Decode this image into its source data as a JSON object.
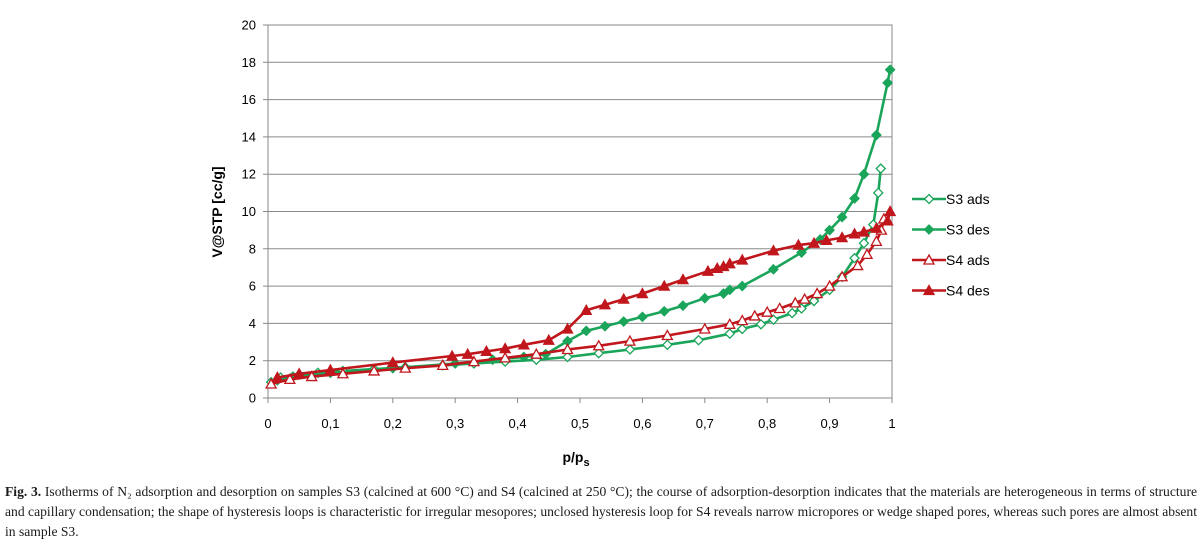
{
  "chart_data": {
    "type": "line",
    "xlabel_main": "p/p",
    "xlabel_sub": "s",
    "ylabel": "V@STP [cc/g]",
    "xlim": [
      0,
      1
    ],
    "ylim": [
      0,
      20
    ],
    "x_ticks": [
      "0",
      "0,1",
      "0,2",
      "0,3",
      "0,4",
      "0,5",
      "0,6",
      "0,7",
      "0,8",
      "0,9",
      "1"
    ],
    "y_ticks": [
      "0",
      "2",
      "4",
      "6",
      "8",
      "10",
      "12",
      "14",
      "16",
      "18",
      "20"
    ],
    "grid": "horizontal",
    "legend_position": "right",
    "series": [
      {
        "name": "S3 ads",
        "color": "#1aa55a",
        "marker": "diamond-open",
        "points": [
          [
            0.005,
            0.85
          ],
          [
            0.02,
            1.1
          ],
          [
            0.05,
            1.25
          ],
          [
            0.08,
            1.35
          ],
          [
            0.12,
            1.45
          ],
          [
            0.17,
            1.55
          ],
          [
            0.22,
            1.65
          ],
          [
            0.28,
            1.75
          ],
          [
            0.33,
            1.85
          ],
          [
            0.38,
            1.95
          ],
          [
            0.43,
            2.05
          ],
          [
            0.48,
            2.2
          ],
          [
            0.53,
            2.4
          ],
          [
            0.58,
            2.6
          ],
          [
            0.64,
            2.85
          ],
          [
            0.69,
            3.1
          ],
          [
            0.74,
            3.45
          ],
          [
            0.76,
            3.7
          ],
          [
            0.79,
            3.95
          ],
          [
            0.81,
            4.2
          ],
          [
            0.84,
            4.55
          ],
          [
            0.855,
            4.8
          ],
          [
            0.875,
            5.2
          ],
          [
            0.9,
            5.8
          ],
          [
            0.92,
            6.5
          ],
          [
            0.94,
            7.5
          ],
          [
            0.955,
            8.3
          ],
          [
            0.97,
            9.3
          ],
          [
            0.978,
            11.0
          ],
          [
            0.982,
            12.3
          ]
        ]
      },
      {
        "name": "S3 des",
        "color": "#1aa55a",
        "marker": "diamond-filled",
        "points": [
          [
            0.997,
            17.6
          ],
          [
            0.993,
            16.9
          ],
          [
            0.975,
            14.1
          ],
          [
            0.955,
            12.0
          ],
          [
            0.94,
            10.7
          ],
          [
            0.92,
            9.7
          ],
          [
            0.9,
            9.0
          ],
          [
            0.885,
            8.5
          ],
          [
            0.855,
            7.8
          ],
          [
            0.81,
            6.9
          ],
          [
            0.76,
            6.0
          ],
          [
            0.74,
            5.8
          ],
          [
            0.73,
            5.6
          ],
          [
            0.7,
            5.35
          ],
          [
            0.665,
            4.95
          ],
          [
            0.635,
            4.65
          ],
          [
            0.6,
            4.35
          ],
          [
            0.57,
            4.1
          ],
          [
            0.54,
            3.85
          ],
          [
            0.51,
            3.6
          ],
          [
            0.48,
            3.05
          ],
          [
            0.445,
            2.35
          ],
          [
            0.41,
            2.2
          ],
          [
            0.36,
            2.05
          ],
          [
            0.3,
            1.85
          ],
          [
            0.2,
            1.6
          ],
          [
            0.1,
            1.35
          ],
          [
            0.04,
            1.15
          ],
          [
            0.015,
            0.95
          ]
        ]
      },
      {
        "name": "S4 ads",
        "color": "#c0161c",
        "marker": "triangle-open",
        "points": [
          [
            0.005,
            0.75
          ],
          [
            0.035,
            1.0
          ],
          [
            0.07,
            1.15
          ],
          [
            0.12,
            1.3
          ],
          [
            0.17,
            1.45
          ],
          [
            0.22,
            1.6
          ],
          [
            0.28,
            1.75
          ],
          [
            0.33,
            1.95
          ],
          [
            0.38,
            2.15
          ],
          [
            0.43,
            2.35
          ],
          [
            0.48,
            2.6
          ],
          [
            0.53,
            2.8
          ],
          [
            0.58,
            3.05
          ],
          [
            0.64,
            3.35
          ],
          [
            0.7,
            3.7
          ],
          [
            0.74,
            3.95
          ],
          [
            0.76,
            4.15
          ],
          [
            0.78,
            4.4
          ],
          [
            0.8,
            4.6
          ],
          [
            0.82,
            4.8
          ],
          [
            0.845,
            5.1
          ],
          [
            0.86,
            5.3
          ],
          [
            0.88,
            5.6
          ],
          [
            0.9,
            6.0
          ],
          [
            0.92,
            6.5
          ],
          [
            0.945,
            7.1
          ],
          [
            0.96,
            7.7
          ],
          [
            0.975,
            8.4
          ],
          [
            0.983,
            9.0
          ],
          [
            0.987,
            9.6
          ]
        ]
      },
      {
        "name": "S4 des",
        "color": "#c0161c",
        "marker": "triangle-filled",
        "points": [
          [
            0.997,
            10.0
          ],
          [
            0.993,
            9.5
          ],
          [
            0.975,
            9.1
          ],
          [
            0.955,
            8.9
          ],
          [
            0.94,
            8.8
          ],
          [
            0.92,
            8.6
          ],
          [
            0.895,
            8.45
          ],
          [
            0.875,
            8.3
          ],
          [
            0.85,
            8.2
          ],
          [
            0.81,
            7.9
          ],
          [
            0.76,
            7.4
          ],
          [
            0.74,
            7.2
          ],
          [
            0.73,
            7.05
          ],
          [
            0.72,
            6.95
          ],
          [
            0.705,
            6.8
          ],
          [
            0.665,
            6.35
          ],
          [
            0.635,
            6.0
          ],
          [
            0.6,
            5.6
          ],
          [
            0.57,
            5.3
          ],
          [
            0.54,
            5.0
          ],
          [
            0.51,
            4.7
          ],
          [
            0.48,
            3.7
          ],
          [
            0.45,
            3.1
          ],
          [
            0.41,
            2.85
          ],
          [
            0.38,
            2.65
          ],
          [
            0.35,
            2.5
          ],
          [
            0.32,
            2.35
          ],
          [
            0.295,
            2.25
          ],
          [
            0.2,
            1.9
          ],
          [
            0.1,
            1.5
          ],
          [
            0.05,
            1.3
          ],
          [
            0.015,
            1.1
          ]
        ]
      }
    ]
  },
  "caption": {
    "label": "Fig. 3.",
    "text": "Isotherms of N₂ adsorption and desorption on samples S3 (calcined at 600 °C) and S4 (calcined at 250 °C); the course of adsorption-desorption indicates that the materials are heterogeneous in terms of structure and capillary condensation; the shape of hysteresis loops is characteristic for irregular mesopores; unclosed hysteresis loop for S4 reveals narrow micropores or wedge shaped pores, whereas such pores are almost absent in sample S3."
  }
}
